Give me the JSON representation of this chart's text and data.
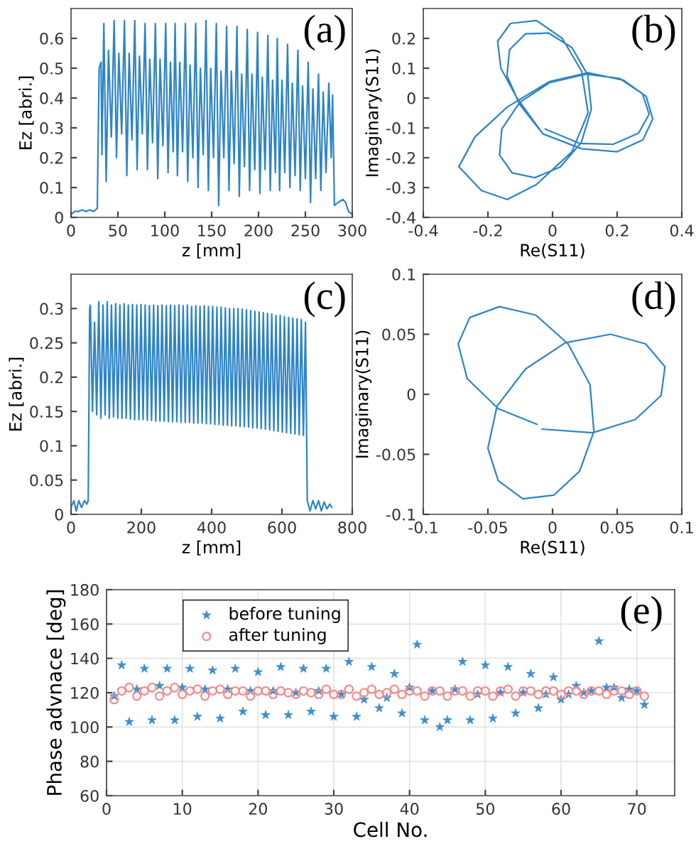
{
  "chart_data": [
    {
      "type": "line",
      "xlabel": "z [mm]",
      "ylabel": "Ez [abri.]",
      "annotations": [
        "(a)"
      ],
      "xlim": [
        0,
        300
      ],
      "xticks": [
        0,
        50,
        100,
        150,
        200,
        250,
        300
      ],
      "ylim": [
        0,
        0.7
      ],
      "yticks": [
        0,
        0.1,
        0.2,
        0.3,
        0.4,
        0.5,
        0.6
      ],
      "grid": false,
      "legend": false,
      "series": [
        {
          "color": "#2f84c6",
          "x": [
            0,
            4,
            8,
            12,
            16,
            20,
            24,
            28,
            30,
            32,
            33,
            35,
            37.5,
            40,
            43,
            46,
            48.5,
            51,
            54,
            57,
            59.5,
            62,
            65,
            68,
            70.5,
            73,
            76,
            79,
            81.5,
            84,
            87,
            90,
            92.5,
            95,
            98,
            101,
            103.5,
            106,
            109,
            111,
            113.5,
            116,
            119,
            122,
            124.5,
            127,
            130,
            133,
            135.5,
            138,
            141,
            144,
            146.5,
            149,
            152,
            155,
            157.5,
            160,
            163,
            166,
            168.5,
            171,
            174,
            177,
            179.5,
            182,
            185,
            188,
            190.5,
            193,
            196,
            199,
            201.5,
            204,
            207,
            210,
            212.5,
            215,
            218,
            220,
            222.5,
            225,
            228,
            231,
            233.5,
            236,
            239,
            242,
            244.5,
            247,
            250,
            253,
            255.5,
            258,
            261,
            264,
            266.5,
            269,
            272,
            275,
            277.5,
            279,
            281,
            285,
            290,
            293,
            296,
            300
          ],
          "values": [
            0.01,
            0.02,
            0.02,
            0.025,
            0.02,
            0.025,
            0.02,
            0.03,
            0.5,
            0.52,
            0.21,
            0.65,
            0.12,
            0.56,
            0.27,
            0.66,
            0.2,
            0.55,
            0.28,
            0.66,
            0.14,
            0.55,
            0.26,
            0.66,
            0.16,
            0.54,
            0.28,
            0.65,
            0.16,
            0.53,
            0.25,
            0.65,
            0.13,
            0.53,
            0.24,
            0.65,
            0.15,
            0.52,
            0.22,
            0.65,
            0.14,
            0.52,
            0.22,
            0.65,
            0.12,
            0.51,
            0.2,
            0.65,
            0.1,
            0.5,
            0.21,
            0.66,
            0.09,
            0.5,
            0.2,
            0.65,
            0.04,
            0.49,
            0.2,
            0.64,
            0.09,
            0.49,
            0.18,
            0.64,
            0.07,
            0.48,
            0.17,
            0.63,
            0.09,
            0.48,
            0.16,
            0.62,
            0.08,
            0.47,
            0.16,
            0.61,
            0.09,
            0.46,
            0.15,
            0.6,
            0.09,
            0.46,
            0.15,
            0.58,
            0.1,
            0.45,
            0.14,
            0.56,
            0.09,
            0.44,
            0.13,
            0.52,
            0.05,
            0.43,
            0.13,
            0.48,
            0.09,
            0.42,
            0.15,
            0.45,
            0.2,
            0.41,
            0.04,
            0.05,
            0.06,
            0.05,
            0.02,
            0.01
          ]
        }
      ]
    },
    {
      "type": "line",
      "xlabel": "Re(S11)",
      "ylabel": "Imaginary(S11)",
      "annotations": [
        "(b)"
      ],
      "xlim": [
        -0.4,
        0.4
      ],
      "xticks": [
        -0.4,
        -0.2,
        0,
        0.2,
        0.4
      ],
      "ylim": [
        -0.4,
        0.3
      ],
      "yticks": [
        -0.4,
        -0.3,
        -0.2,
        -0.1,
        0,
        0.1,
        0.2
      ],
      "grid": false,
      "legend": false,
      "series": [
        {
          "color": "#2f84c6",
          "x": [
            -0.022,
            0.083,
            0.188,
            0.266,
            0.299,
            0.278,
            0.207,
            0.104,
            -0.008,
            -0.102,
            -0.157,
            -0.164,
            -0.125,
            -0.055,
            0.024,
            0.089,
            0.12,
            0.109,
            0.06,
            -0.012,
            -0.084,
            -0.133,
            -0.141,
            -0.102,
            -0.03,
            0.09,
            0.2,
            0.28,
            0.31,
            0.29,
            0.22,
            0.11,
            -0.01,
            -0.14,
            -0.24,
            -0.29,
            -0.22,
            -0.14,
            -0.05,
            0.06,
            0.11,
            0.09,
            0.03,
            -0.05,
            -0.13,
            -0.17,
            -0.16,
            -0.11,
            -0.03
          ],
          "values": [
            -0.104,
            -0.152,
            -0.155,
            -0.118,
            -0.054,
            0.015,
            0.066,
            0.08,
            0.052,
            -0.015,
            -0.104,
            -0.191,
            -0.251,
            -0.267,
            -0.231,
            -0.149,
            -0.038,
            0.077,
            0.169,
            0.218,
            0.215,
            0.162,
            0.075,
            -0.021,
            -0.12,
            -0.17,
            -0.18,
            -0.14,
            -0.07,
            0.005,
            0.06,
            0.085,
            0.055,
            -0.03,
            -0.13,
            -0.23,
            -0.31,
            -0.34,
            -0.29,
            -0.18,
            -0.05,
            0.09,
            0.2,
            0.26,
            0.25,
            0.19,
            0.1,
            0.0,
            -0.12
          ]
        }
      ]
    },
    {
      "type": "line",
      "xlabel": "z [mm]",
      "ylabel": "Ez [abri.]",
      "annotations": [
        "(c)"
      ],
      "xlim": [
        0,
        800
      ],
      "xticks": [
        0,
        200,
        400,
        600,
        800
      ],
      "ylim": [
        0,
        0.35
      ],
      "yticks": [
        0,
        0.05,
        0.1,
        0.15,
        0.2,
        0.25,
        0.3
      ],
      "grid": false,
      "legend": false,
      "series": [
        {
          "color": "#2f84c6",
          "x": [
            0,
            8,
            15,
            22,
            30,
            38,
            45,
            49,
            53,
            55,
            61,
            67,
            73,
            79,
            85,
            91,
            97,
            103,
            109,
            115,
            121,
            127,
            133,
            139,
            145,
            151,
            157,
            163,
            169,
            175,
            181,
            187,
            193,
            199,
            205,
            211,
            217,
            223,
            229,
            235,
            241,
            247,
            253,
            259,
            265,
            271,
            277,
            283,
            289,
            295,
            301,
            307,
            313,
            319,
            325,
            331,
            337,
            343,
            349,
            355,
            361,
            367,
            373,
            379,
            385,
            391,
            397,
            403,
            409,
            415,
            421,
            427,
            433,
            439,
            445,
            451,
            457,
            463,
            469,
            475,
            481,
            487,
            493,
            499,
            505,
            511,
            517,
            523,
            529,
            535,
            541,
            547,
            553,
            559,
            565,
            571,
            577,
            583,
            589,
            595,
            601,
            607,
            613,
            619,
            625,
            631,
            637,
            643,
            649,
            655,
            661,
            667,
            672,
            680,
            688,
            696,
            704,
            712,
            720,
            728,
            736,
            742
          ],
          "values": [
            0.01,
            0.02,
            0.005,
            0.02,
            0.01,
            0.02,
            0.015,
            0.02,
            0.3,
            0.305,
            0.15,
            0.28,
            0.145,
            0.31,
            0.14,
            0.305,
            0.145,
            0.31,
            0.14,
            0.305,
            0.142,
            0.307,
            0.14,
            0.305,
            0.14,
            0.307,
            0.14,
            0.305,
            0.139,
            0.306,
            0.138,
            0.305,
            0.138,
            0.306,
            0.138,
            0.305,
            0.137,
            0.304,
            0.137,
            0.305,
            0.136,
            0.304,
            0.136,
            0.305,
            0.136,
            0.304,
            0.135,
            0.305,
            0.135,
            0.304,
            0.135,
            0.305,
            0.134,
            0.304,
            0.134,
            0.305,
            0.134,
            0.303,
            0.133,
            0.304,
            0.133,
            0.303,
            0.133,
            0.304,
            0.132,
            0.303,
            0.132,
            0.303,
            0.131,
            0.302,
            0.131,
            0.302,
            0.13,
            0.301,
            0.13,
            0.3,
            0.129,
            0.3,
            0.129,
            0.3,
            0.128,
            0.299,
            0.128,
            0.298,
            0.127,
            0.297,
            0.126,
            0.296,
            0.126,
            0.295,
            0.125,
            0.294,
            0.124,
            0.293,
            0.123,
            0.292,
            0.122,
            0.29,
            0.121,
            0.29,
            0.12,
            0.288,
            0.119,
            0.287,
            0.118,
            0.286,
            0.117,
            0.285,
            0.116,
            0.284,
            0.115,
            0.28,
            0.02,
            0.005,
            0.02,
            0.008,
            0.02,
            0.005,
            0.018,
            0.008,
            0.015,
            0.01
          ]
        }
      ]
    },
    {
      "type": "line",
      "xlabel": "Re(S11)",
      "ylabel": "Imaginary(S11)",
      "annotations": [
        "(d)"
      ],
      "xlim": [
        -0.1,
        0.1
      ],
      "xticks": [
        -0.1,
        -0.05,
        0,
        0.05,
        0.1
      ],
      "ylim": [
        -0.1,
        0.1
      ],
      "yticks": [
        -0.1,
        -0.05,
        0,
        0.05,
        0.1
      ],
      "grid": false,
      "legend": false,
      "series": [
        {
          "color": "#2f84c6",
          "x": [
            -0.008,
            0.031,
            0.064,
            0.084,
            0.087,
            0.072,
            0.045,
            0.01,
            -0.021,
            -0.043,
            -0.05,
            -0.042,
            -0.023,
            0.001,
            0.021,
            0.032,
            0.029,
            0.012,
            -0.013,
            -0.041,
            -0.064,
            -0.073,
            -0.066,
            -0.042,
            -0.012
          ],
          "values": [
            -0.029,
            -0.032,
            -0.021,
            -0.001,
            0.023,
            0.042,
            0.05,
            0.043,
            0.021,
            -0.01,
            -0.045,
            -0.072,
            -0.087,
            -0.084,
            -0.064,
            -0.031,
            0.008,
            0.042,
            0.066,
            0.073,
            0.064,
            0.042,
            0.013,
            -0.012,
            -0.025
          ]
        }
      ]
    },
    {
      "type": "scatter",
      "xlabel": "Cell No.",
      "ylabel": "Phase advnace [deg]",
      "annotations": [
        "(e)"
      ],
      "xlim": [
        0,
        75
      ],
      "xticks": [
        0,
        10,
        20,
        30,
        40,
        50,
        60,
        70
      ],
      "ylim": [
        60,
        180
      ],
      "yticks": [
        60,
        80,
        100,
        120,
        140,
        160,
        180
      ],
      "grid": true,
      "legend": "top left",
      "x": [
        1,
        2,
        3,
        4,
        5,
        6,
        7,
        8,
        9,
        10,
        11,
        12,
        13,
        14,
        15,
        16,
        17,
        18,
        19,
        20,
        21,
        22,
        23,
        24,
        25,
        26,
        27,
        28,
        29,
        30,
        31,
        32,
        33,
        34,
        35,
        36,
        37,
        38,
        39,
        40,
        41,
        42,
        43,
        44,
        45,
        46,
        47,
        48,
        49,
        50,
        51,
        52,
        53,
        54,
        55,
        56,
        57,
        58,
        59,
        60,
        61,
        62,
        63,
        64,
        65,
        66,
        67,
        68,
        69,
        70,
        71
      ],
      "series": [
        {
          "name": "before tuning",
          "color": "#3d8fd1",
          "marker": "star",
          "values": [
            118,
            136,
            103,
            122,
            134,
            104,
            124,
            134,
            104,
            123,
            134,
            106,
            122,
            133,
            105,
            122,
            134,
            109,
            121,
            132,
            107,
            121,
            135,
            107,
            120,
            134,
            109,
            121,
            134,
            106,
            119,
            138,
            106,
            116,
            135,
            111,
            117,
            131,
            108,
            123,
            148,
            104,
            121,
            100,
            104,
            122,
            138,
            104,
            119,
            136,
            105,
            120,
            135,
            108,
            120,
            131,
            111,
            119,
            129,
            116,
            119,
            124,
            120,
            121,
            150,
            123,
            123,
            117,
            122,
            121,
            113
          ]
        },
        {
          "name": "after tuning",
          "color": "#f28b8b",
          "marker": "circle",
          "values": [
            116,
            121,
            123,
            118,
            121,
            123,
            118,
            121,
            123,
            119,
            121,
            122,
            118,
            121,
            122,
            119,
            121,
            121,
            118,
            121,
            121,
            119,
            121,
            120,
            119,
            121,
            120,
            119,
            122,
            119,
            119,
            122,
            118,
            120,
            122,
            119,
            120,
            122,
            119,
            121,
            121,
            118,
            121,
            121,
            118,
            121,
            121,
            118,
            121,
            121,
            118,
            121,
            122,
            118,
            121,
            121,
            119,
            121,
            121,
            119,
            121,
            121,
            119,
            121,
            121,
            119,
            121,
            121,
            119,
            121,
            118
          ]
        }
      ]
    }
  ]
}
